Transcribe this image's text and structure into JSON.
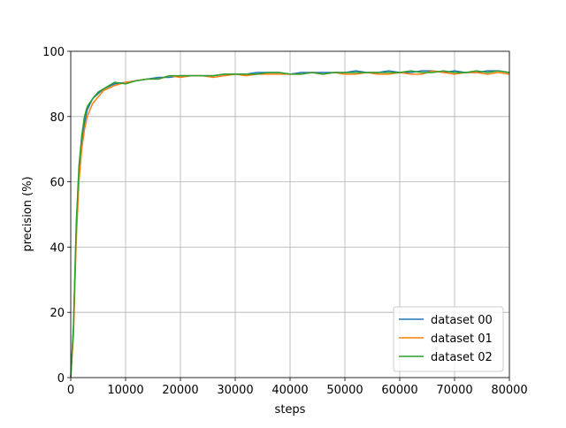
{
  "chart_data": {
    "type": "line",
    "xlabel": "steps",
    "ylabel": "precision (%)",
    "x": [
      0,
      500,
      1000,
      1500,
      2000,
      2500,
      3000,
      4000,
      5000,
      6000,
      8000,
      10000,
      12000,
      14000,
      16000,
      18000,
      20000,
      22000,
      24000,
      26000,
      28000,
      30000,
      32000,
      34000,
      36000,
      38000,
      40000,
      42000,
      44000,
      46000,
      48000,
      50000,
      52000,
      54000,
      56000,
      58000,
      60000,
      62000,
      64000,
      66000,
      68000,
      70000,
      72000,
      74000,
      76000,
      78000,
      80000
    ],
    "series": [
      {
        "name": "dataset 00",
        "color": "#1f77b4",
        "values": [
          0,
          15,
          45,
          63,
          72,
          78,
          82,
          85.5,
          87,
          88.5,
          90,
          90.5,
          91,
          91.5,
          92,
          92,
          92.5,
          92.5,
          92.5,
          92.5,
          93,
          93,
          93,
          93.5,
          93.5,
          93.5,
          93,
          93.5,
          93.5,
          93.5,
          93.5,
          93.5,
          94,
          93.5,
          93.5,
          94,
          93.5,
          93.5,
          94,
          94,
          93.5,
          94,
          93.5,
          93.5,
          94,
          94,
          93.5
        ]
      },
      {
        "name": "dataset 01",
        "color": "#ff7f0e",
        "values": [
          0,
          13,
          42,
          60,
          70,
          76,
          80,
          84,
          86,
          88,
          89.5,
          90.5,
          91,
          91.5,
          91.5,
          92.5,
          92,
          92.5,
          92.5,
          92,
          92.5,
          93,
          92.5,
          93,
          93,
          93,
          93,
          93,
          93.5,
          93,
          93.5,
          93,
          93,
          93.5,
          93,
          93,
          93.5,
          93,
          93,
          94,
          93.5,
          93,
          93.5,
          93.5,
          93,
          93.5,
          93
        ]
      },
      {
        "name": "dataset 02",
        "color": "#2ca02c",
        "values": [
          0,
          16,
          47,
          65,
          74,
          80,
          83,
          85.5,
          87.5,
          88.5,
          90.5,
          90,
          91,
          91.5,
          91.5,
          92.5,
          92.5,
          92.5,
          92.5,
          92.5,
          93,
          93,
          93,
          93,
          93.5,
          93.5,
          93,
          93,
          93.5,
          93,
          93.5,
          93.5,
          93.5,
          93.5,
          93.5,
          93.5,
          93.5,
          94,
          93.5,
          93.5,
          94,
          93.5,
          93.5,
          94,
          93.5,
          94,
          93.5
        ]
      }
    ],
    "xlim": [
      0,
      80000
    ],
    "xticks": [
      0,
      10000,
      20000,
      30000,
      40000,
      50000,
      60000,
      70000,
      80000
    ],
    "ylim": [
      0,
      100
    ],
    "yticks": [
      0,
      20,
      40,
      60,
      80,
      100
    ],
    "grid": true,
    "legend": "lower right"
  }
}
